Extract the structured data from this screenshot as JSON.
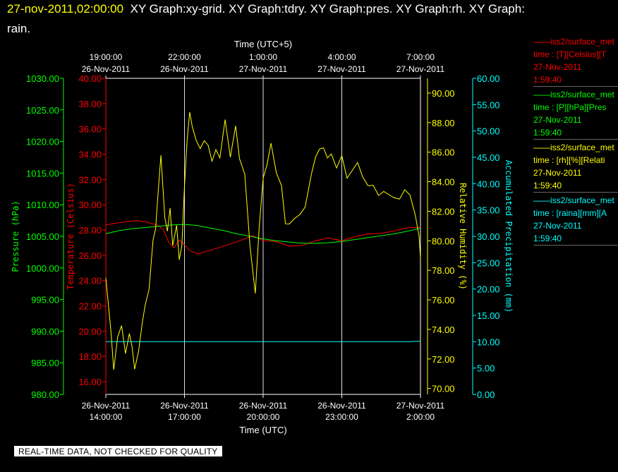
{
  "header": {
    "stamp": "27-nov-2011,02:00:00",
    "titles_line1": "XY Graph:xy-grid.  XY Graph:tdry.  XY Graph:pres.  XY Graph:rh.  XY Graph:",
    "titles_line2": "rain."
  },
  "legend": [
    {
      "name": "iss2/surface_met",
      "line2": "time : [T][Celsius][T",
      "line3": "27-Nov-2011",
      "line4": "1:59:40",
      "color": "#ff0000"
    },
    {
      "name": "iss2/surface_met",
      "line2": "time : [P][hPa][Pres",
      "line3": "27-Nov-2011",
      "line4": "1:59:40",
      "color": "#00ff00"
    },
    {
      "name": "iss2/surface_met",
      "line2": "time : [rh][%][Relati",
      "line3": "27-Nov-2011",
      "line4": "1:59:40",
      "color": "#ffff00"
    },
    {
      "name": "iss2/surface_met",
      "line2": "time : [raina][mm][A",
      "line3": "27-Nov-2011",
      "line4": "1:59:40",
      "color": "#00ffff"
    }
  ],
  "notice": "REAL-TIME DATA, NOT CHECKED FOR QUALITY",
  "chart_data": {
    "type": "line",
    "top_axis_title": "Time (UTC+5)",
    "bottom_axis_title": "Time (UTC)",
    "x_range": [
      0,
      12
    ],
    "x_unit": "hours since 26-Nov-2011 14:00 UTC",
    "bottom_ticks": [
      {
        "x": 0,
        "date": "26-Nov-2011",
        "time": "14:00:00"
      },
      {
        "x": 3,
        "date": "26-Nov-2011",
        "time": "17:00:00"
      },
      {
        "x": 6,
        "date": "26-Nov-2011",
        "time": "20:00:00"
      },
      {
        "x": 9,
        "date": "26-Nov-2011",
        "time": "23:00:00"
      },
      {
        "x": 12,
        "date": "27-Nov-2011",
        "time": "2:00:00"
      }
    ],
    "top_ticks": [
      {
        "x": 0,
        "time": "19:00:00",
        "date": "26-Nov-2011"
      },
      {
        "x": 3,
        "time": "22:00:00",
        "date": "26-Nov-2011"
      },
      {
        "x": 6,
        "time": "1:00:00",
        "date": "27-Nov-2011"
      },
      {
        "x": 9,
        "time": "4:00:00",
        "date": "27-Nov-2011"
      },
      {
        "x": 12,
        "time": "7:00:00",
        "date": "27-Nov-2011"
      }
    ],
    "grid": "vertical",
    "axes": {
      "pressure": {
        "label": "Pressure (hPa)",
        "color": "#00ff00",
        "range": [
          980,
          1030
        ],
        "ticks": [
          "980.00",
          "985.00",
          "990.00",
          "995.00",
          "1000.00",
          "1005.00",
          "1010.00",
          "1015.00",
          "1020.00",
          "1025.00",
          "1030.00"
        ]
      },
      "temperature": {
        "label": "Temperature (Celsius)",
        "color": "#ff0000",
        "range": [
          15,
          40
        ],
        "ticks": [
          "16.00",
          "18.00",
          "20.00",
          "22.00",
          "24.00",
          "26.00",
          "28.00",
          "30.00",
          "32.00",
          "34.00",
          "36.00",
          "38.00",
          "40.00"
        ]
      },
      "rh": {
        "label": "Relative Humidity (%)",
        "color": "#ffff00",
        "range": [
          69.6,
          91.0
        ],
        "ticks": [
          "70.00",
          "72.00",
          "74.00",
          "76.00",
          "78.00",
          "80.00",
          "82.00",
          "84.00",
          "86.00",
          "88.00",
          "90.00"
        ]
      },
      "rain": {
        "label": "Accumulated Precipitation (mm)",
        "color": "#00ffff",
        "range": [
          0,
          60
        ],
        "ticks": [
          "0.00",
          "5.00",
          "10.00",
          "15.00",
          "20.00",
          "25.00",
          "30.00",
          "35.00",
          "40.00",
          "45.00",
          "50.00",
          "55.00",
          "60.00"
        ]
      }
    },
    "series": [
      {
        "axis": "temperature",
        "color": "#ff0000",
        "x": [
          0,
          0.3,
          0.8,
          1.2,
          1.6,
          2.0,
          2.2,
          2.4,
          2.6,
          2.8,
          3.0,
          3.2,
          3.5,
          4.0,
          4.5,
          5.0,
          5.3,
          5.6,
          6.0,
          6.5,
          7.0,
          7.5,
          8.0,
          8.5,
          9.0,
          9.5,
          10.0,
          10.5,
          11.0,
          11.5,
          12.0
        ],
        "values": [
          28.4,
          28.6,
          28.6,
          28.7,
          28.6,
          28.3,
          28.0,
          27.0,
          26.6,
          27.2,
          26.8,
          26.4,
          26.1,
          26.5,
          26.8,
          27.0,
          27.3,
          27.6,
          27.2,
          27.0,
          26.8,
          26.8,
          27.1,
          27.3,
          27.2,
          27.5,
          27.6,
          27.8,
          28.0,
          28.1,
          28.2
        ]
      },
      {
        "axis": "pressure",
        "color": "#00ff00",
        "x": [
          0,
          0.5,
          1.0,
          1.5,
          2.0,
          2.5,
          3.0,
          3.5,
          4.0,
          4.5,
          5.0,
          5.5,
          6.0,
          6.5,
          7.0,
          7.5,
          8.0,
          8.5,
          9.0,
          9.5,
          10.0,
          10.5,
          11.0,
          11.5,
          12.0
        ],
        "values": [
          1005.4,
          1005.9,
          1006.2,
          1006.4,
          1006.6,
          1006.8,
          1006.9,
          1006.7,
          1006.3,
          1005.9,
          1005.4,
          1005.0,
          1004.6,
          1004.3,
          1004.1,
          1003.9,
          1003.9,
          1004.0,
          1004.2,
          1004.5,
          1004.8,
          1005.1,
          1005.4,
          1005.8,
          1006.3
        ]
      },
      {
        "axis": "rh",
        "color": "#ffff00",
        "x": [
          0,
          0.2,
          0.3,
          0.45,
          0.6,
          0.75,
          0.9,
          1.0,
          1.1,
          1.25,
          1.4,
          1.5,
          1.65,
          1.8,
          1.9,
          2.0,
          2.1,
          2.25,
          2.35,
          2.45,
          2.55,
          2.7,
          2.8,
          2.9,
          3.0,
          3.1,
          3.2,
          3.3,
          3.45,
          3.6,
          3.75,
          3.9,
          4.05,
          4.2,
          4.35,
          4.55,
          4.75,
          4.95,
          5.1,
          5.3,
          5.5,
          5.7,
          5.85,
          6.0,
          6.15,
          6.3,
          6.5,
          6.7,
          6.85,
          7.0,
          7.2,
          7.4,
          7.6,
          7.85,
          8.0,
          8.15,
          8.3,
          8.45,
          8.6,
          8.8,
          9.0,
          9.2,
          9.4,
          9.6,
          9.8,
          10.0,
          10.2,
          10.4,
          10.6,
          10.8,
          11.0,
          11.2,
          11.4,
          11.6,
          11.8,
          11.95,
          12.0
        ],
        "values": [
          77.5,
          74.0,
          71.5,
          73.5,
          74.5,
          72.5,
          74.0,
          73.0,
          71.0,
          72.5,
          74.5,
          75.5,
          76.5,
          80.0,
          81.0,
          83.5,
          85.5,
          81.5,
          80.5,
          82.5,
          79.5,
          81.0,
          78.5,
          80.0,
          84.0,
          86.5,
          89.0,
          88.0,
          87.0,
          86.5,
          87.0,
          86.5,
          85.5,
          86.5,
          85.5,
          88.0,
          86.0,
          87.5,
          85.5,
          84.5,
          79.5,
          76.5,
          81.0,
          84.5,
          85.5,
          86.5,
          84.5,
          84.0,
          81.5,
          81.0,
          81.5,
          82.0,
          82.0,
          84.5,
          85.5,
          86.0,
          86.0,
          85.5,
          86.0,
          85.0,
          85.5,
          84.5,
          84.5,
          85.5,
          84.0,
          84.0,
          83.5,
          83.0,
          83.5,
          83.0,
          83.0,
          82.5,
          83.5,
          83.0,
          82.0,
          80.5,
          79.0
        ]
      },
      {
        "axis": "rain",
        "color": "#00ffff",
        "x": [
          0,
          11.5,
          12.0
        ],
        "values": [
          10.0,
          10.0,
          10.1
        ]
      }
    ]
  }
}
